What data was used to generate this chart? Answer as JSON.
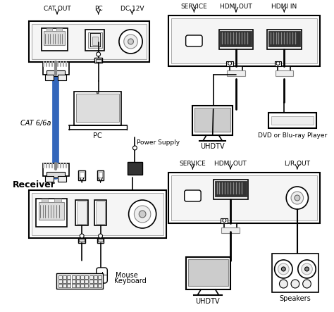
{
  "bg_color": "#ffffff",
  "line_color": "#000000",
  "cable_color": "#3366bb",
  "text_color": "#000000",
  "labels": {
    "cat_out": "CAT OUT",
    "pc_port": "PC",
    "dc12v": "DC 12V",
    "service_top": "SERVICE",
    "hdmi_out_top": "HDMI OUT",
    "hdmi_in_top": "HDMI IN",
    "cat6": "CAT 6/6a",
    "pc_device": "PC",
    "uhdtv_top": "UHDTV",
    "dvd": "DVD or Blu-ray Player",
    "receiver": "Receiver",
    "power_supply": "Power Supply",
    "service_bot": "SERVICE",
    "hdmi_out_bot": "HDMI OUT",
    "lr_out": "L/R OUT",
    "mouse": "Mouse",
    "keyboard": "Keyboard",
    "uhdtv_bot": "UHDTV",
    "speakers": "Speakers"
  }
}
